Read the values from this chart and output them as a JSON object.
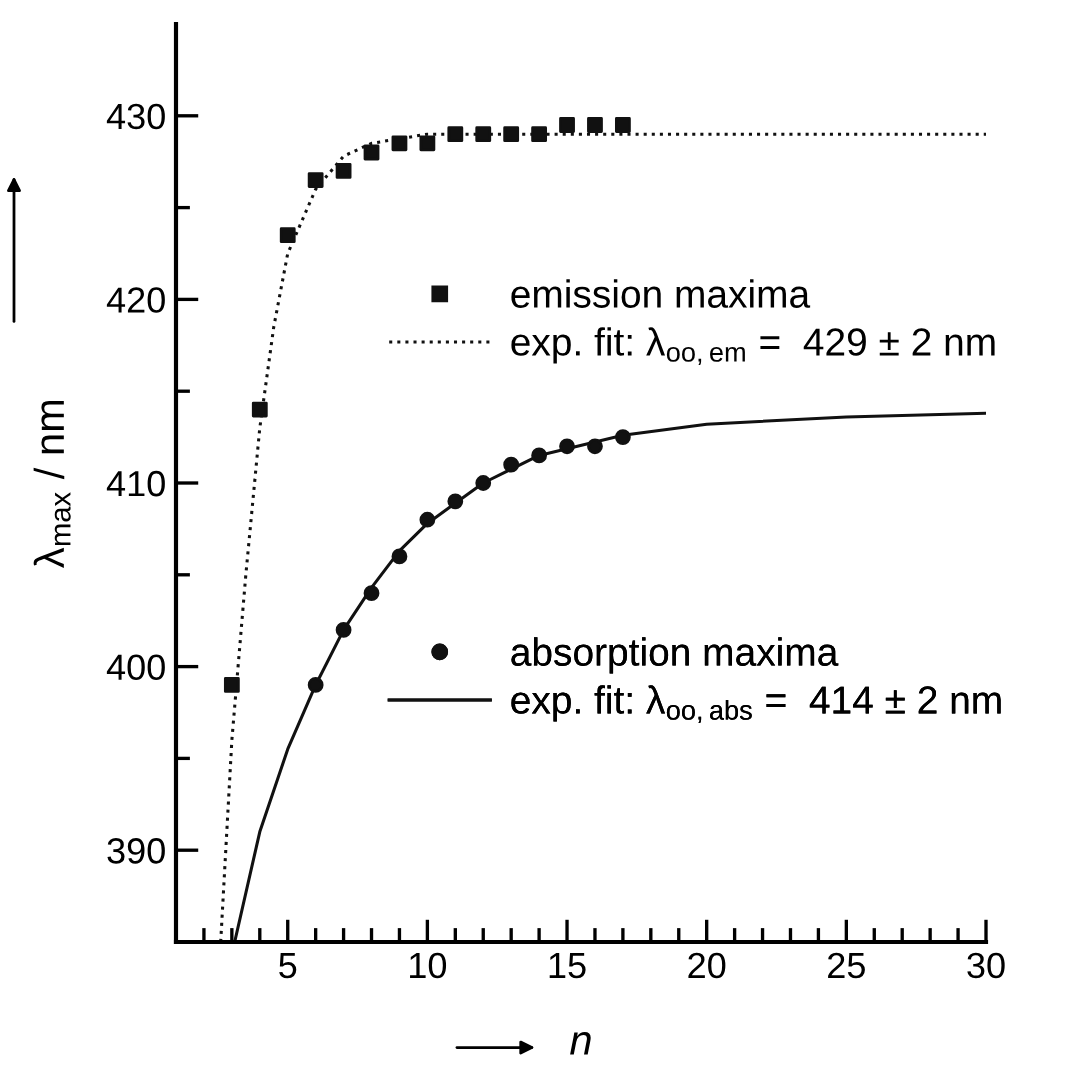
{
  "chart_data": {
    "type": "scatter",
    "xlabel": "n",
    "ylabel": "λ$_{max}$ / nm",
    "xlim": [
      1,
      30
    ],
    "ylim": [
      385,
      435
    ],
    "xticks": [
      {
        "value": 2,
        "label": null
      },
      {
        "value": 3,
        "label": null
      },
      {
        "value": 4,
        "label": null
      },
      5,
      {
        "value": 6,
        "label": null
      },
      {
        "value": 7,
        "label": null
      },
      {
        "value": 8,
        "label": null
      },
      {
        "value": 9,
        "label": null
      },
      10,
      {
        "value": 11,
        "label": null
      },
      {
        "value": 12,
        "label": null
      },
      {
        "value": 13,
        "label": null
      },
      {
        "value": 14,
        "label": null
      },
      15,
      {
        "value": 16,
        "label": null
      },
      {
        "value": 17,
        "label": null
      },
      {
        "value": 18,
        "label": null
      },
      {
        "value": 19,
        "label": null
      },
      20,
      {
        "value": 21,
        "label": null
      },
      {
        "value": 22,
        "label": null
      },
      {
        "value": 23,
        "label": null
      },
      {
        "value": 24,
        "label": null
      },
      25,
      {
        "value": 26,
        "label": null
      },
      {
        "value": 27,
        "label": null
      },
      {
        "value": 28,
        "label": null
      },
      {
        "value": 29,
        "label": null
      },
      30
    ],
    "yticks": [
      390,
      {
        "value": 395,
        "label": null
      },
      400,
      {
        "value": 405,
        "label": null
      },
      410,
      {
        "value": 415,
        "label": null
      },
      420,
      {
        "value": 425,
        "label": null
      },
      430
    ],
    "grid": false,
    "legend": "right",
    "series": [
      {
        "name": "emission maxima",
        "marker": "square",
        "color": "#111111",
        "x": [
          3,
          4,
          5,
          6,
          7,
          8,
          9,
          10,
          11,
          12,
          13,
          14,
          15,
          16,
          17
        ],
        "values": [
          399,
          414,
          423.5,
          426.5,
          427,
          428,
          428.5,
          428.5,
          429,
          429,
          429,
          429,
          429.5,
          429.5,
          429.5
        ]
      },
      {
        "name": "exp. fit: λ$_{oo,em}$ =  429 ± 2 nm",
        "type": "line",
        "line_style": "dotted",
        "color": "#111111",
        "x": [
          2.6,
          3,
          3.5,
          4,
          4.5,
          5,
          6,
          7,
          8,
          10,
          30
        ],
        "values": [
          385,
          396,
          405,
          413,
          418.5,
          422.5,
          426,
          427.8,
          428.5,
          429,
          429
        ]
      },
      {
        "name": "absorption maxima",
        "marker": "circle",
        "color": "#111111",
        "x": [
          6,
          7,
          8,
          9,
          10,
          11,
          12,
          13,
          14,
          15,
          16,
          17
        ],
        "values": [
          399,
          402,
          404,
          406,
          408,
          409,
          410,
          411,
          411.5,
          412,
          412,
          412.5
        ]
      },
      {
        "name": "exp. fit: λ$_{oo,abs}$ =  414 ± 2 nm",
        "type": "line",
        "line_style": "solid",
        "color": "#111111",
        "x": [
          3.1,
          4,
          5,
          6,
          7,
          8,
          9,
          10,
          12,
          14,
          17,
          20,
          25,
          30
        ],
        "values": [
          385,
          391,
          395.5,
          399,
          402,
          404.3,
          406.3,
          407.8,
          410,
          411.5,
          412.6,
          413.2,
          413.6,
          413.8
        ]
      }
    ]
  }
}
